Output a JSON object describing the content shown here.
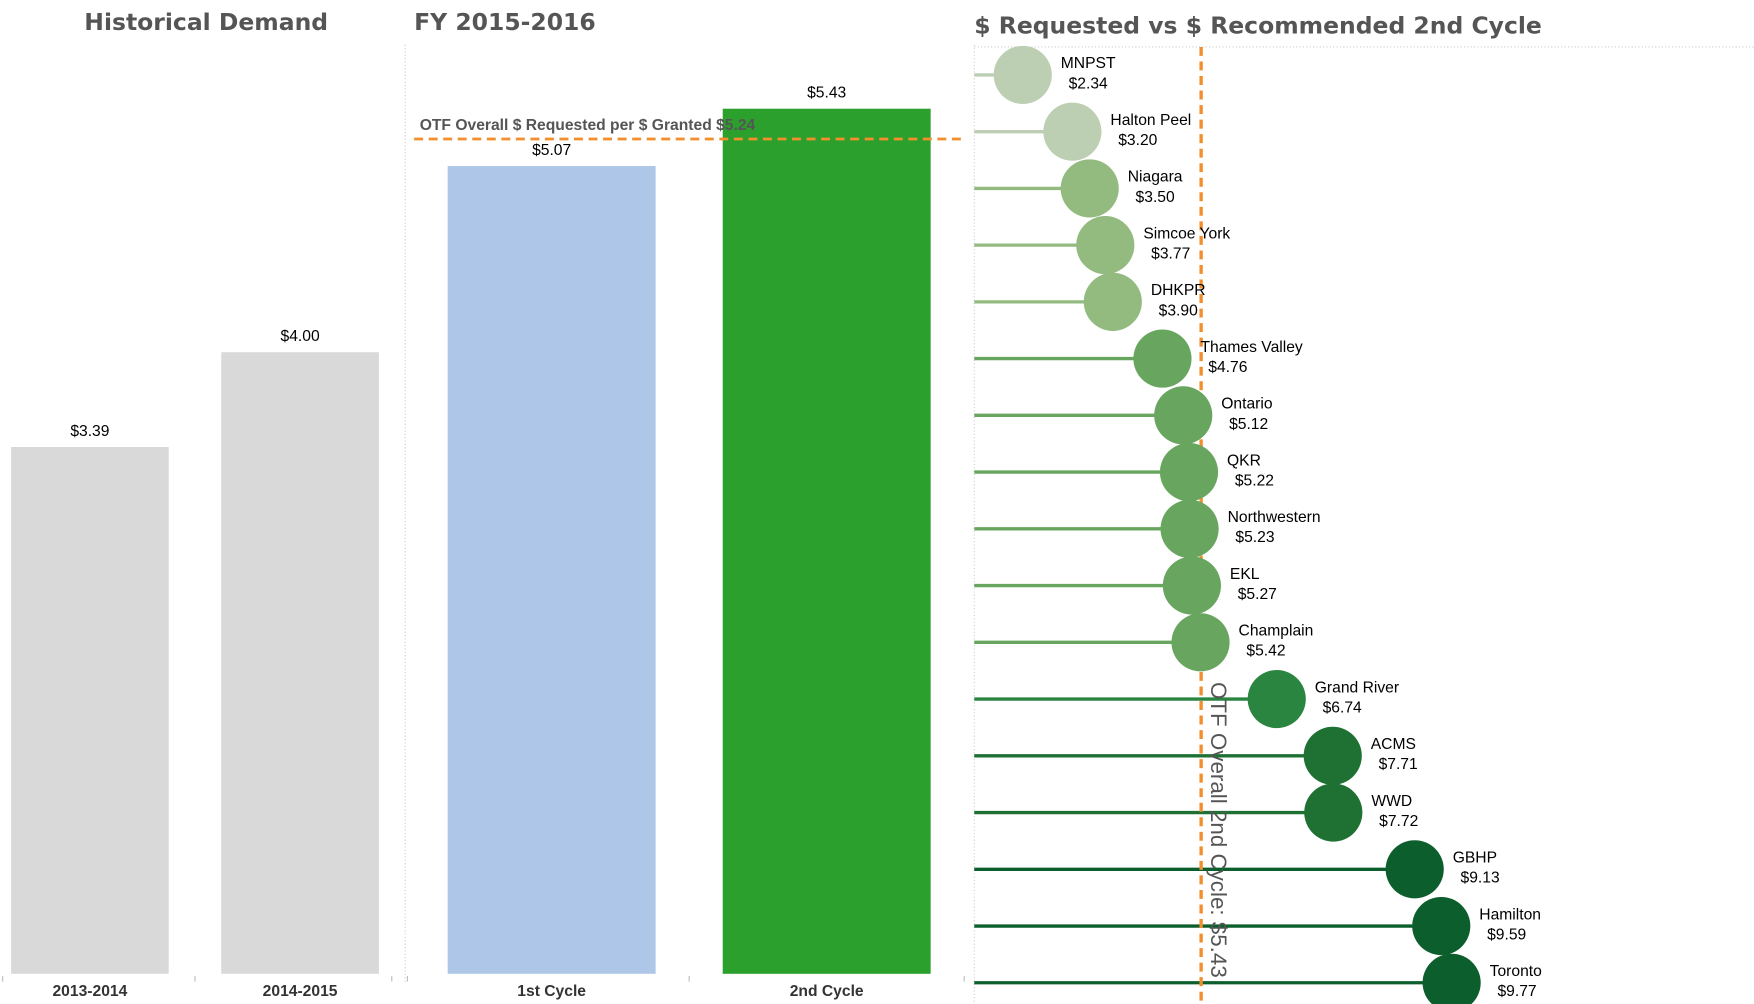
{
  "chart_data": [
    {
      "type": "bar",
      "title": "Historical Demand",
      "categories": [
        "2013-2014",
        "2014-2015"
      ],
      "values": [
        3.39,
        4.0
      ],
      "value_labels": [
        "$3.39",
        "$4.00"
      ],
      "colors": [
        "#d9d9d9",
        "#d9d9d9"
      ],
      "ylim": [
        0,
        6
      ]
    },
    {
      "type": "bar",
      "title": "FY 2015-2016",
      "categories": [
        "1st Cycle",
        "2nd Cycle"
      ],
      "values": [
        5.07,
        5.43
      ],
      "value_labels": [
        "$5.07",
        "$5.43"
      ],
      "colors": [
        "#aec7e8",
        "#2ca02c"
      ],
      "ylim": [
        0,
        6
      ],
      "reference_line": {
        "label": "OTF Overall $ Requested per $ Granted $5.24",
        "value": 5.24,
        "color": "#f28e2b"
      }
    },
    {
      "type": "lollipop",
      "title": "$ Requested vs $ Recommended 2nd Cycle",
      "categories": [
        "MNPST",
        "Halton Peel",
        "Niagara",
        "Simcoe York",
        "DHKPR",
        "Thames Valley",
        "Ontario",
        "QKR",
        "Northwestern",
        "EKL",
        "Champlain",
        "Grand River",
        "ACMS",
        "WWD",
        "GBHP",
        "Hamilton",
        "Toronto"
      ],
      "values": [
        2.34,
        3.2,
        3.5,
        3.77,
        3.9,
        4.76,
        5.12,
        5.22,
        5.23,
        5.27,
        5.42,
        6.74,
        7.71,
        7.72,
        9.13,
        9.59,
        9.77
      ],
      "value_labels": [
        "$2.34",
        "$3.20",
        "$3.50",
        "$3.77",
        "$3.90",
        "$4.76",
        "$5.12",
        "$5.22",
        "$5.23",
        "$5.27",
        "$5.42",
        "$6.74",
        "$7.71",
        "$7.72",
        "$9.13",
        "$9.59",
        "$9.77"
      ],
      "colors": [
        "#bccfb3",
        "#bccfb3",
        "#93bb80",
        "#93bb80",
        "#93bb80",
        "#68a55e",
        "#68a55e",
        "#68a55e",
        "#68a55e",
        "#68a55e",
        "#68a55e",
        "#2a8540",
        "#1e7033",
        "#1e7033",
        "#0c5f2c",
        "#0c5f2c",
        "#0c5f2c"
      ],
      "xlim": [
        1.5,
        15
      ],
      "reference_line": {
        "label": "OTF Overall 2nd Cycle: $5.43",
        "value": 5.43,
        "color": "#f28e2b"
      }
    }
  ]
}
